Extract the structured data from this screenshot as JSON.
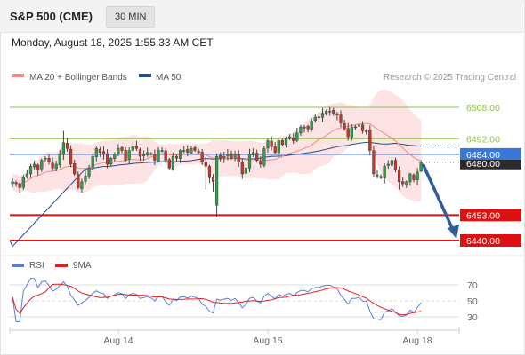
{
  "header": {
    "title": "S&P 500 (CME)",
    "timeframe": "30 MIN"
  },
  "datetime": "Monday, August 18, 2025 1:55:33 AM CET",
  "legend": {
    "ma20_label": "MA 20 + Bollinger Bands",
    "ma20_color": "#f08a8a",
    "ma50_label": "MA 50",
    "ma50_color": "#1f4e8c",
    "credit": "Research © 2025 Trading Central"
  },
  "rsi_legend": {
    "rsi_label": "RSI",
    "rsi_color": "#5b7fd6",
    "ma_label": "9MA",
    "ma_color": "#e02020"
  },
  "chart_data": {
    "type": "candlestick",
    "price_range": [
      6432,
      6516
    ],
    "levels": [
      {
        "value": 6508.0,
        "label": "6508.00",
        "kind": "resistance",
        "color": "#8cc34a"
      },
      {
        "value": 6492.0,
        "label": "6492.00",
        "kind": "resistance",
        "color": "#8cc34a"
      },
      {
        "value": 6484.0,
        "label": "6484.00",
        "kind": "pivot",
        "color": "#3a78d8"
      },
      {
        "value": 6480.0,
        "label": "6480.00",
        "kind": "last_price",
        "color": "#333333"
      },
      {
        "value": 6453.0,
        "label": "6453.00",
        "kind": "support",
        "color": "#dd1111"
      },
      {
        "value": 6440.0,
        "label": "6440.00",
        "kind": "support",
        "color": "#dd1111"
      }
    ],
    "x_ticks": [
      "Aug 14",
      "Aug 15",
      "Aug 18"
    ],
    "closes": [
      6470,
      6469,
      6467,
      6472,
      6474,
      6478,
      6479,
      6476,
      6481,
      6482,
      6480,
      6477,
      6479,
      6484,
      6490,
      6487,
      6479,
      6474,
      6467,
      6470,
      6473,
      6477,
      6483,
      6487,
      6485,
      6484,
      6479,
      6482,
      6484,
      6487,
      6486,
      6481,
      6486,
      6488,
      6487,
      6483,
      6484,
      6485,
      6484,
      6481,
      6486,
      6486,
      6481,
      6477,
      6483,
      6482,
      6486,
      6486,
      6485,
      6487,
      6486,
      6485,
      6480,
      6478,
      6472,
      6470,
      6483,
      6482,
      6483,
      6484,
      6482,
      6484,
      6480,
      6474,
      6477,
      6484,
      6485,
      6481,
      6479,
      6487,
      6491,
      6488,
      6485,
      6491,
      6489,
      6492,
      6493,
      6491,
      6495,
      6498,
      6498,
      6497,
      6501,
      6503,
      6503,
      6505,
      6506,
      6506,
      6505,
      6504,
      6500,
      6497,
      6493,
      6498,
      6498,
      6499,
      6496,
      6496,
      6486,
      6474,
      6473,
      6472,
      6478,
      6479,
      6481,
      6476,
      6470,
      6469,
      6470,
      6474,
      6471,
      6475,
      6480
    ],
    "forecast_arrow": {
      "from": 6480,
      "to": 6440
    },
    "rsi": {
      "levels": [
        70,
        50,
        30
      ],
      "range": [
        20,
        80
      ]
    }
  }
}
